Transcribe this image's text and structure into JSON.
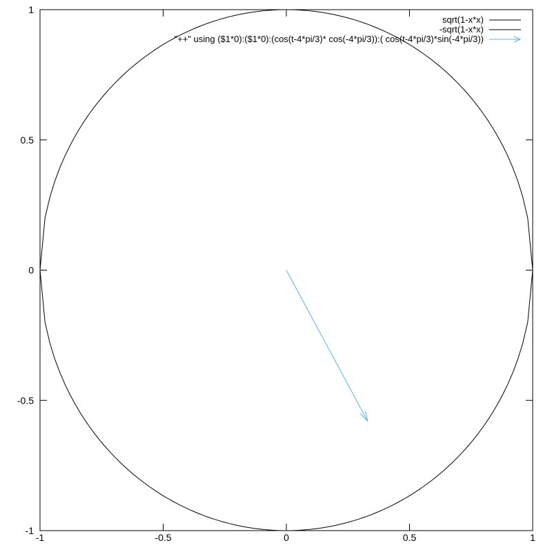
{
  "chart_data": {
    "type": "line",
    "title": "",
    "xlabel": "",
    "ylabel": "",
    "xlim": [
      -1,
      1
    ],
    "ylim": [
      -1,
      1
    ],
    "grid": false,
    "legend_position": "inside top right",
    "background_color": "#ffffff",
    "axis_color": "#000000",
    "text_color": "#000000",
    "x_ticks": [
      {
        "value": -1,
        "label": "-1"
      },
      {
        "value": -0.5,
        "label": "-0.5"
      },
      {
        "value": 0,
        "label": "0"
      },
      {
        "value": 0.5,
        "label": "0.5"
      },
      {
        "value": 1,
        "label": "1"
      }
    ],
    "y_ticks": [
      {
        "value": -1,
        "label": "-1"
      },
      {
        "value": -0.5,
        "label": "-0.5"
      },
      {
        "value": 0,
        "label": "0"
      },
      {
        "value": 0.5,
        "label": "0.5"
      },
      {
        "value": 1,
        "label": "1"
      }
    ],
    "series": [
      {
        "name": "sqrt(1-x*x)",
        "type": "line",
        "color": "#000000",
        "fn": "circle-upper",
        "radius": 1,
        "samples": 100
      },
      {
        "name": "-sqrt(1-x*x)",
        "type": "line",
        "color": "#000000",
        "fn": "circle-lower",
        "radius": 1,
        "samples": 100
      },
      {
        "name": "\"++\" using ($1*0):($1*0):(cos(t-4*pi/3)* cos(-4*pi/3)):( cos(t-4*pi/3)*sin(-4*pi/3))",
        "type": "vector",
        "color": "#56b4e9",
        "from": [
          0,
          0
        ],
        "to": [
          0.33,
          -0.58
        ]
      }
    ]
  }
}
